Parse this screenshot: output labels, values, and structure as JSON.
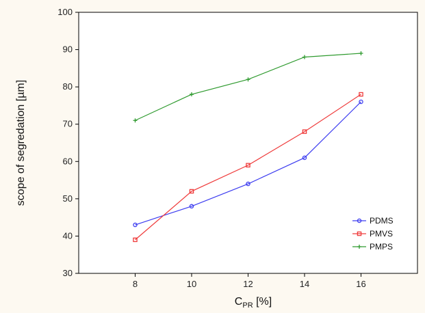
{
  "chart_data": {
    "type": "line",
    "title": "",
    "xlabel_main": "C",
    "xlabel_sub": "PR",
    "xlabel_unit": " [%]",
    "ylabel": "scope of segredation [µm]",
    "x": [
      8,
      10,
      12,
      14,
      16
    ],
    "xticks": [
      "8",
      "10",
      "12",
      "14",
      "16"
    ],
    "xlim": [
      6,
      18
    ],
    "ylim": [
      30,
      100
    ],
    "yticks": [
      "30",
      "40",
      "50",
      "60",
      "70",
      "80",
      "90",
      "100"
    ],
    "grid": false,
    "legend_position": "bottom-right",
    "series": [
      {
        "name": "PDMS",
        "values": [
          43,
          48,
          54,
          61,
          76
        ],
        "color": "#3c3cf0",
        "marker": "circle"
      },
      {
        "name": "PMVS",
        "values": [
          39,
          52,
          59,
          68,
          78
        ],
        "color": "#ef3a3a",
        "marker": "square"
      },
      {
        "name": "PMPS",
        "values": [
          71,
          78,
          82,
          88,
          89
        ],
        "color": "#2e9a2e",
        "marker": "plus"
      }
    ]
  }
}
